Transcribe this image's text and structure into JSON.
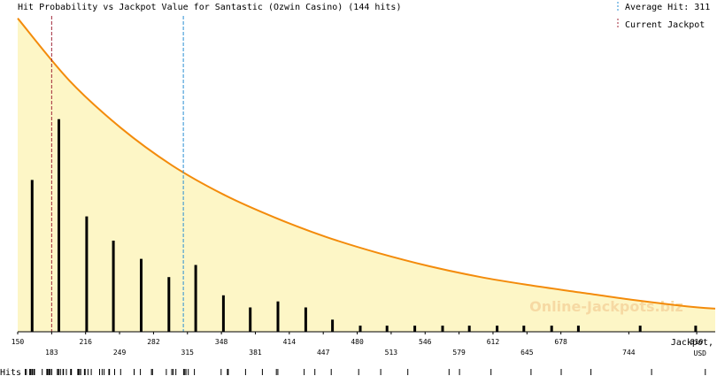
{
  "chart_data": {
    "type": "bar",
    "title": "Hit Probability vs Jackpot Value for Santastic (Ozwin Casino) (144 hits)",
    "xlabel": "Jackpot,",
    "xunit": "USD",
    "xlim": [
      150,
      828
    ],
    "ylim": [
      0,
      26
    ],
    "grid": false,
    "legend": {
      "position": "top-right",
      "average_label": "Average Hit: 311",
      "current_label": "Current Jackpot"
    },
    "average_hit": 311,
    "current_jackpot": 183,
    "x_ticks_upper": [
      "150",
      "216",
      "282",
      "348",
      "414",
      "480",
      "546",
      "612",
      "678",
      "810"
    ],
    "x_ticks_lower": [
      "183",
      "249",
      "315",
      "381",
      "447",
      "513",
      "579",
      "645",
      "744"
    ],
    "hits_label": "Hits",
    "bars": {
      "x": [
        164,
        190,
        217,
        243,
        270,
        297,
        323,
        350,
        376,
        403,
        430,
        456,
        483,
        509,
        536,
        563,
        589,
        616,
        642,
        669,
        695,
        755,
        809
      ],
      "values": [
        12.5,
        17.5,
        9.5,
        7.5,
        6.0,
        4.5,
        5.5,
        3.0,
        2.0,
        2.5,
        2.0,
        1.0,
        0.5,
        0.5,
        0.5,
        0.5,
        0.5,
        0.5,
        0.5,
        0.5,
        0.5,
        0.5,
        0.5
      ]
    },
    "curve": {
      "name": "Probability",
      "x": [
        150,
        200,
        250,
        300,
        350,
        400,
        450,
        500,
        550,
        600,
        650,
        700,
        750,
        800,
        828
      ],
      "values": [
        25.8,
        20.7,
        16.8,
        13.7,
        11.3,
        9.4,
        7.8,
        6.5,
        5.4,
        4.5,
        3.8,
        3.2,
        2.6,
        2.1,
        1.9
      ]
    },
    "watermark": "Online-Jackpots.biz",
    "colors": {
      "fill": "#fdf6c6",
      "curve": "#f38b0b",
      "bar": "#000000",
      "average_line": "#2a8fd4",
      "current_line": "#a0283a",
      "axis": "#000000",
      "watermark": "#f6d9a3"
    }
  }
}
